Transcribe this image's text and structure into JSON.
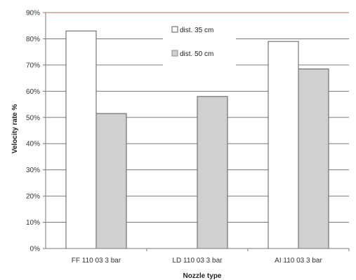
{
  "chart_data": {
    "type": "bar",
    "categories": [
      "FF 110 03 3 bar",
      "LD 110 03 3 bar",
      "AI 110 03 3 bar"
    ],
    "series": [
      {
        "name": "dist. 35 cm",
        "values": [
          83,
          null,
          79
        ],
        "color": "#ffffff"
      },
      {
        "name": "dist. 50 cm",
        "values": [
          51.5,
          58,
          68.5
        ],
        "color": "#d0d0d0"
      }
    ],
    "xlabel": "Nozzle type",
    "ylabel": "Velocity rate %",
    "ylim": [
      0,
      90
    ],
    "y_ticks": [
      "0%",
      "10%",
      "20%",
      "30%",
      "40%",
      "50%",
      "60%",
      "70%",
      "80%",
      "90%"
    ],
    "grid": true,
    "legend_position": "top-center",
    "colors": {
      "grid": "#7a7a7a",
      "bar_outline": "#5a5a5a",
      "top_border": "#b56a6a"
    }
  }
}
